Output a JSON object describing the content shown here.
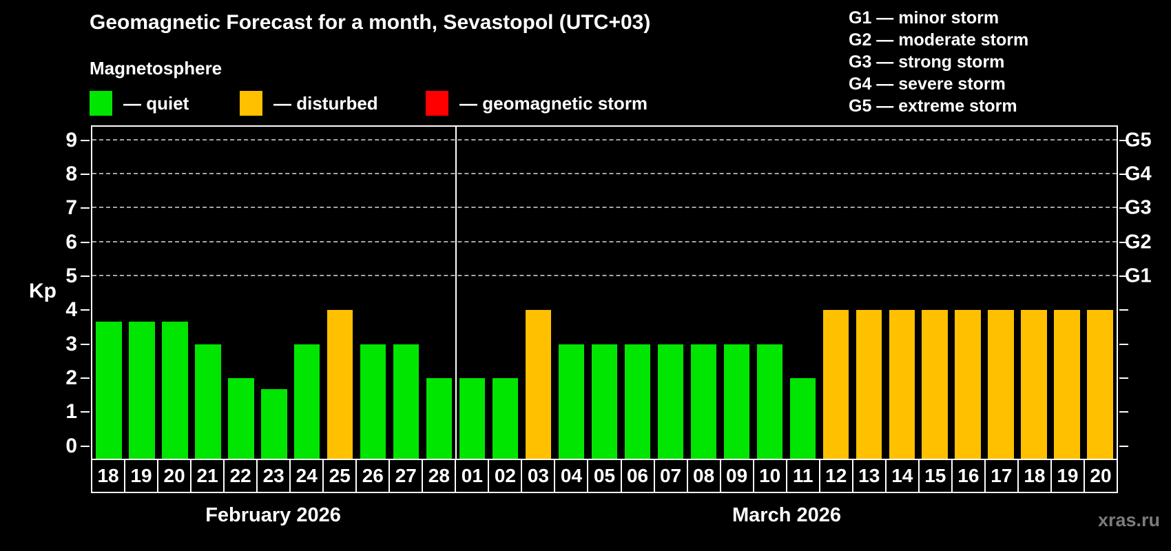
{
  "header": {
    "title": "Geomagnetic Forecast for a month, Sevastopol (UTC+03)",
    "section_label": "Magnetosphere"
  },
  "g_scale_legend": {
    "items": [
      "G1 — minor storm",
      "G2 — moderate storm",
      "G3 — strong storm",
      "G4 — severe storm",
      "G5 — extreme storm"
    ]
  },
  "status_legend": {
    "items": [
      {
        "name": "quiet",
        "label": "— quiet",
        "color": "#00e600"
      },
      {
        "name": "disturbed",
        "label": "— disturbed",
        "color": "#ffc000"
      },
      {
        "name": "storm",
        "label": "— geomagnetic storm",
        "color": "#ff0000"
      }
    ]
  },
  "chart_data": {
    "type": "bar",
    "title": "Geomagnetic Forecast for a month, Sevastopol (UTC+03)",
    "ylabel": "Kp",
    "ylim": [
      -0.37,
      9.4
    ],
    "yticks": [
      0,
      1,
      2,
      3,
      4,
      5,
      6,
      7,
      8,
      9
    ],
    "right_axis_labels": [
      {
        "kp": 5,
        "label": "G1"
      },
      {
        "kp": 6,
        "label": "G2"
      },
      {
        "kp": 7,
        "label": "G3"
      },
      {
        "kp": 8,
        "label": "G4"
      },
      {
        "kp": 9,
        "label": "G5"
      }
    ],
    "gridlines_kp": [
      5,
      6,
      7,
      8,
      9
    ],
    "grid": "dashed horizontal lines at G-storm levels only",
    "legend_position": "top-left",
    "categories": [
      "18",
      "19",
      "20",
      "21",
      "22",
      "23",
      "24",
      "25",
      "26",
      "27",
      "28",
      "01",
      "02",
      "03",
      "04",
      "05",
      "06",
      "07",
      "08",
      "09",
      "10",
      "11",
      "12",
      "13",
      "14",
      "15",
      "16",
      "17",
      "18",
      "19",
      "20"
    ],
    "values": [
      3.67,
      3.67,
      3.67,
      3,
      2,
      1.67,
      3,
      4,
      3,
      3,
      2,
      2,
      2,
      4,
      3,
      3,
      3,
      3,
      3,
      3,
      3,
      2,
      4,
      4,
      4,
      4,
      4,
      4,
      4,
      4,
      4
    ],
    "statuses": [
      "quiet",
      "quiet",
      "quiet",
      "quiet",
      "quiet",
      "quiet",
      "quiet",
      "disturbed",
      "quiet",
      "quiet",
      "quiet",
      "quiet",
      "quiet",
      "disturbed",
      "quiet",
      "quiet",
      "quiet",
      "quiet",
      "quiet",
      "quiet",
      "quiet",
      "quiet",
      "disturbed",
      "disturbed",
      "disturbed",
      "disturbed",
      "disturbed",
      "disturbed",
      "disturbed",
      "disturbed",
      "disturbed"
    ],
    "months": [
      {
        "label": "February 2026",
        "days": 11
      },
      {
        "label": "March 2026",
        "days": 20
      }
    ]
  },
  "watermark": "xras.ru",
  "colors": {
    "background": "#000000",
    "axis": "#ffffff",
    "grid": "#a6a6a6",
    "quiet": "#00e600",
    "disturbed": "#ffc000",
    "storm": "#ff0000",
    "watermark": "#7b7b7b"
  }
}
